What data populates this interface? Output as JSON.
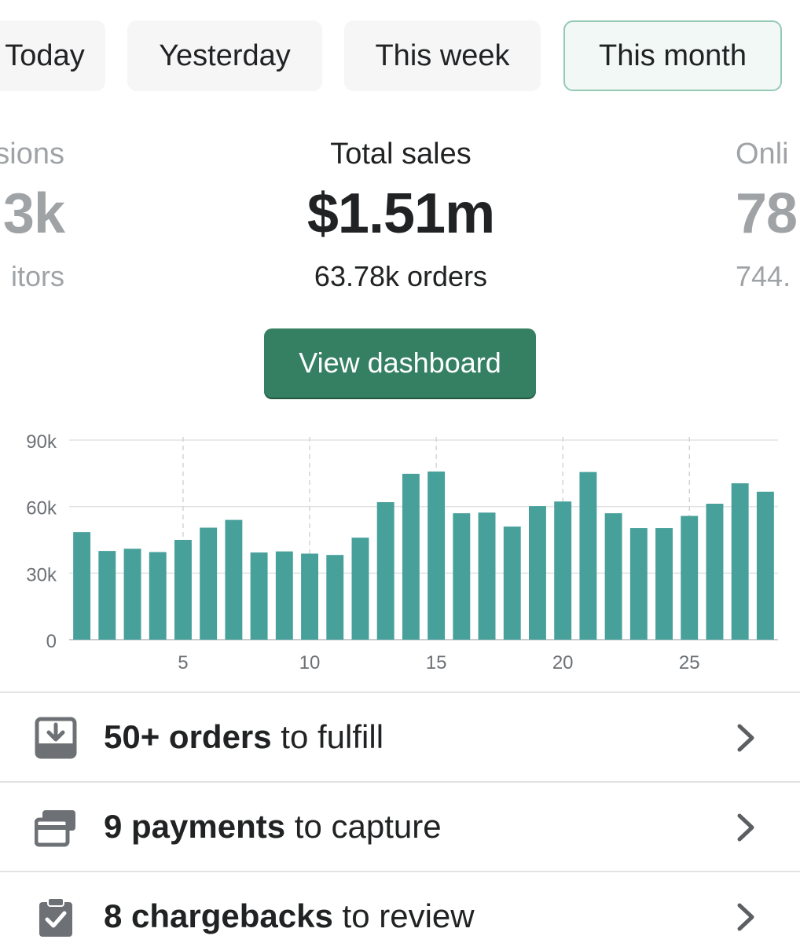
{
  "tabs": [
    {
      "label": "Today",
      "active": false
    },
    {
      "label": "Yesterday",
      "active": false
    },
    {
      "label": "This week",
      "active": false
    },
    {
      "label": "This month",
      "active": true
    }
  ],
  "metrics": {
    "left": {
      "label": "sions",
      "value": "3k",
      "sub": "itors"
    },
    "center": {
      "label": "Total sales",
      "value": "$1.51m",
      "sub": "63.78k orders"
    },
    "right": {
      "label": "Onli",
      "value": "78",
      "sub": "744."
    }
  },
  "view_button": "View dashboard",
  "chart_data": {
    "type": "bar",
    "x": [
      1,
      2,
      3,
      4,
      5,
      6,
      7,
      8,
      9,
      10,
      11,
      12,
      13,
      14,
      15,
      16,
      17,
      18,
      19,
      20,
      21,
      22,
      23,
      24,
      25,
      26,
      27,
      28
    ],
    "values": [
      48500,
      40000,
      41000,
      39500,
      45000,
      50500,
      54000,
      39300,
      39800,
      38800,
      38200,
      46000,
      62000,
      74800,
      75800,
      57000,
      57300,
      51000,
      60200,
      62300,
      75600,
      57000,
      50300,
      50300,
      55800,
      61300,
      70500,
      66700
    ],
    "xticks": [
      "5",
      "10",
      "15",
      "20",
      "25"
    ],
    "xtick_values": [
      5,
      10,
      15,
      20,
      25
    ],
    "yticks": [
      "0",
      "30k",
      "60k",
      "90k"
    ],
    "ytick_values": [
      0,
      30000,
      60000,
      90000
    ],
    "ylim": [
      0,
      90000
    ],
    "color": "#47a09a",
    "grid": true
  },
  "tasks": [
    {
      "icon": "inbox-download-icon",
      "bold": "50+ orders",
      "rest": " to fulfill"
    },
    {
      "icon": "credit-card-icon",
      "bold": "9 payments",
      "rest": " to capture"
    },
    {
      "icon": "clipboard-check-icon",
      "bold": "8 chargebacks",
      "rest": " to review"
    }
  ]
}
